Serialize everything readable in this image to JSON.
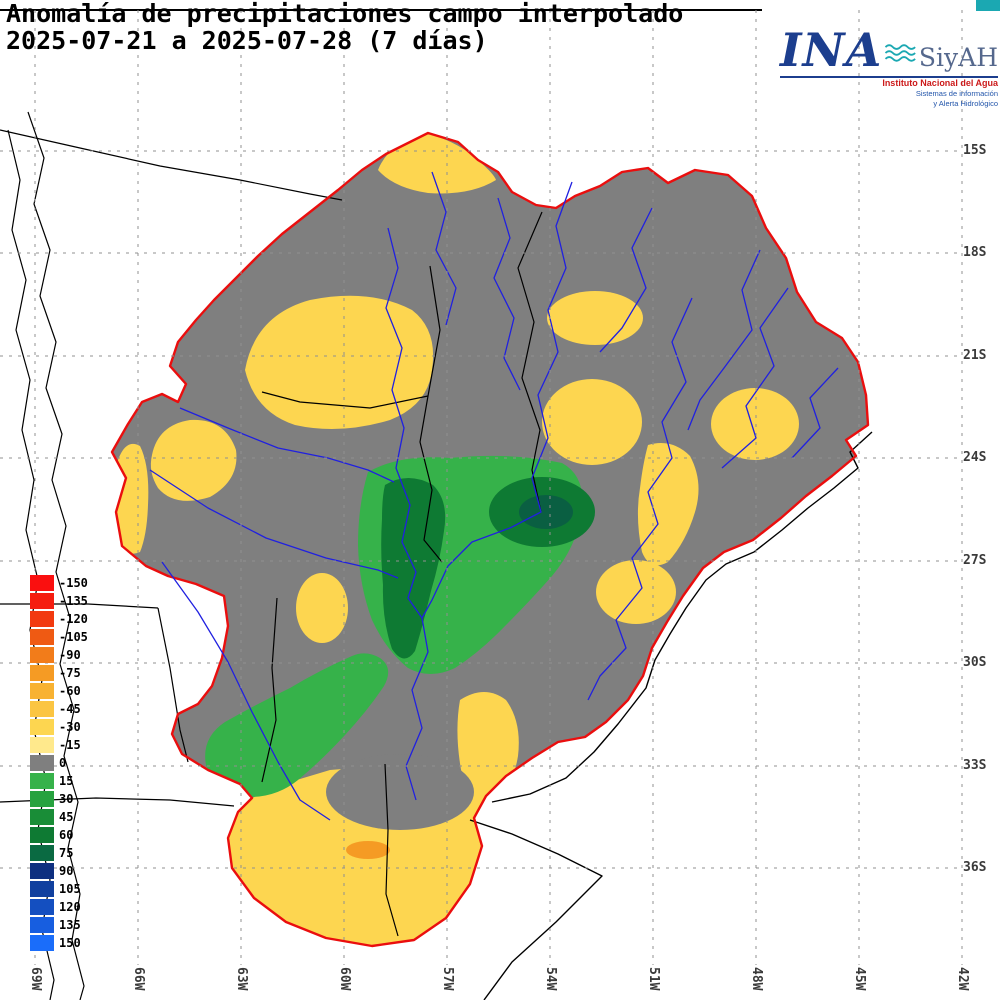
{
  "title": {
    "line1": "Anomalía de precipitaciones campo interpolado",
    "line2": "2025-07-21 a 2025-07-28 (7 días)"
  },
  "logo": {
    "ina": "INA",
    "siyah": "SiyAH",
    "line1": "Instituto Nacional del Agua",
    "line2": "Sistemas de información",
    "line3": "y Alerta Hidrológico",
    "accent": "#1ba8b2",
    "ina_color": "#1c3e8e",
    "siyah_color": "#55688d",
    "red": "#cc1a1a",
    "blue_small": "#2255aa"
  },
  "legend": {
    "entries": [
      {
        "label": "-150",
        "color": "#fa0f0f"
      },
      {
        "label": "-135",
        "color": "#f51d10"
      },
      {
        "label": "-120",
        "color": "#f23a10"
      },
      {
        "label": "-105",
        "color": "#ef5a13"
      },
      {
        "label": "-90",
        "color": "#f27c1a"
      },
      {
        "label": "-75",
        "color": "#f59b24"
      },
      {
        "label": "-60",
        "color": "#f8b232"
      },
      {
        "label": "-45",
        "color": "#fbc542"
      },
      {
        "label": "-30",
        "color": "#fdd650"
      },
      {
        "label": "-15",
        "color": "#ffe98c"
      },
      {
        "label": "0",
        "color": "#7f7f7f"
      },
      {
        "label": "15",
        "color": "#36b24a"
      },
      {
        "label": "30",
        "color": "#27a23f"
      },
      {
        "label": "45",
        "color": "#198d37"
      },
      {
        "label": "60",
        "color": "#0e7a33"
      },
      {
        "label": "75",
        "color": "#0a6a42"
      },
      {
        "label": "90",
        "color": "#0e2f80"
      },
      {
        "label": "105",
        "color": "#11409f"
      },
      {
        "label": "120",
        "color": "#144fc0"
      },
      {
        "label": "135",
        "color": "#175ee0"
      },
      {
        "label": "150",
        "color": "#1a6dfa"
      }
    ]
  },
  "axes": {
    "lat": [
      "15S",
      "18S",
      "21S",
      "24S",
      "27S",
      "30S",
      "33S",
      "36S"
    ],
    "lon": [
      "69W",
      "66W",
      "63W",
      "60W",
      "57W",
      "54W",
      "51W",
      "48W",
      "45W",
      "42W"
    ]
  },
  "map": {
    "colors": {
      "base_gray": "#7f7f7f",
      "yellow": "#fdd650",
      "orange": "#f59b24",
      "green_light": "#36b24a",
      "green_dark": "#0e7a33",
      "green_darkest": "#0a5f42",
      "river": "#2020e0",
      "basin_outline": "#ea0e0e",
      "border": "#000000",
      "grid": "#909090",
      "label": "#3a3a3a"
    }
  }
}
